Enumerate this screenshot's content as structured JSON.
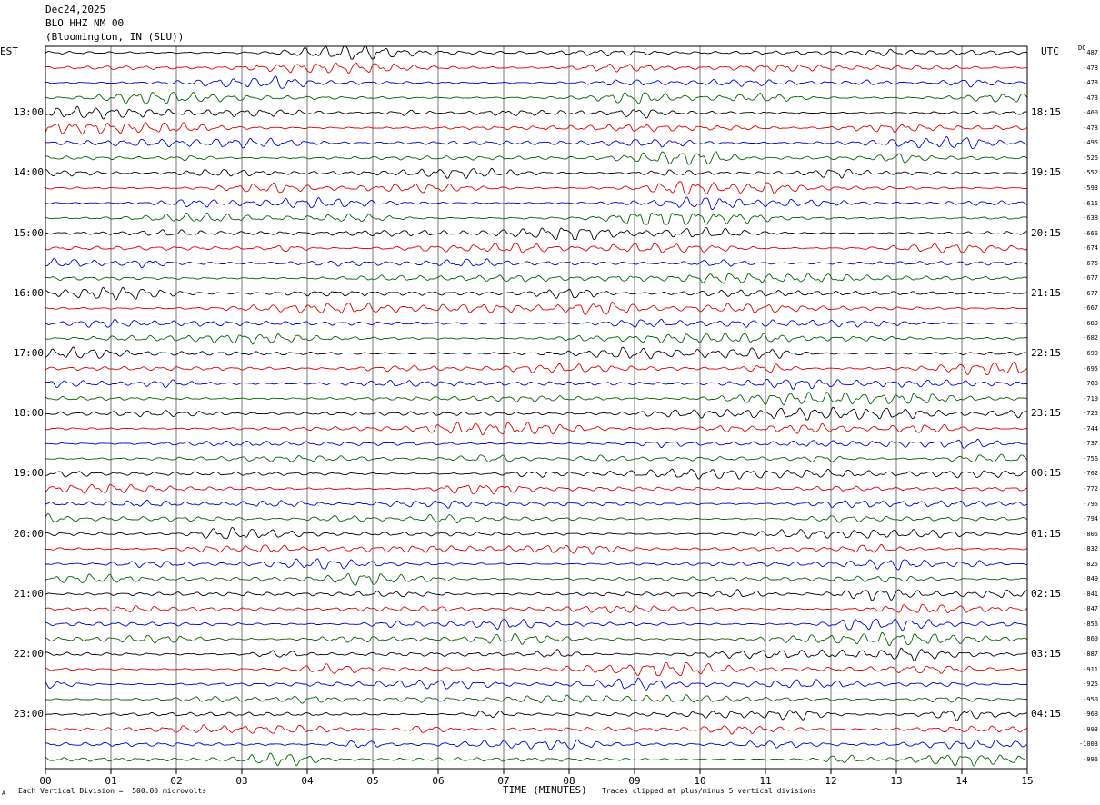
{
  "header": {
    "date": "Dec24,2025",
    "station": "BLO HHZ NM 00",
    "location": "(Bloomington, IN (SLU))"
  },
  "axis": {
    "left_zone": "EST",
    "right_zone": "UTC",
    "dc_label": "DC",
    "x_title": "TIME (MINUTES)",
    "x_ticks": [
      "00",
      "01",
      "02",
      "03",
      "04",
      "05",
      "06",
      "07",
      "08",
      "09",
      "10",
      "11",
      "12",
      "13",
      "14",
      "15"
    ]
  },
  "footer": {
    "left_mark": "A",
    "scale_note": "Each Vertical Division =  500.00 microvolts",
    "clip_note": "Traces clipped at plus/minus 5 vertical divisions"
  },
  "left_hours": [
    "13:00",
    "14:00",
    "15:00",
    "16:00",
    "17:00",
    "18:00",
    "19:00",
    "20:00",
    "21:00",
    "22:00",
    "23:00"
  ],
  "right_hours": [
    "18:15",
    "19:15",
    "20:15",
    "21:15",
    "22:15",
    "23:15",
    "00:15",
    "01:15",
    "02:15",
    "03:15",
    "04:15"
  ],
  "chart_data": {
    "type": "line",
    "title": "Dec24,2025 BLO HHZ NM 00 (Bloomington, IN (SLU))",
    "xlabel": "TIME (MINUTES)",
    "xlim": [
      0,
      15
    ],
    "trace_count": 48,
    "trace_minutes": 15,
    "colors": [
      "#000000",
      "#dd0000",
      "#0000cc",
      "#006400"
    ],
    "dc_offsets": [
      -487,
      -478,
      -478,
      -473,
      -460,
      -478,
      -495,
      -526,
      -552,
      -593,
      -615,
      -638,
      -666,
      -674,
      -675,
      -677,
      -677,
      -667,
      -689,
      -682,
      -690,
      -695,
      -708,
      -719,
      -725,
      -744,
      -737,
      -756,
      -762,
      -772,
      -795,
      -794,
      -805,
      -832,
      -825,
      -849,
      -841,
      -847,
      -856,
      -869,
      -887,
      -911,
      -925,
      -950,
      -968,
      -993,
      -1003,
      -996
    ]
  }
}
